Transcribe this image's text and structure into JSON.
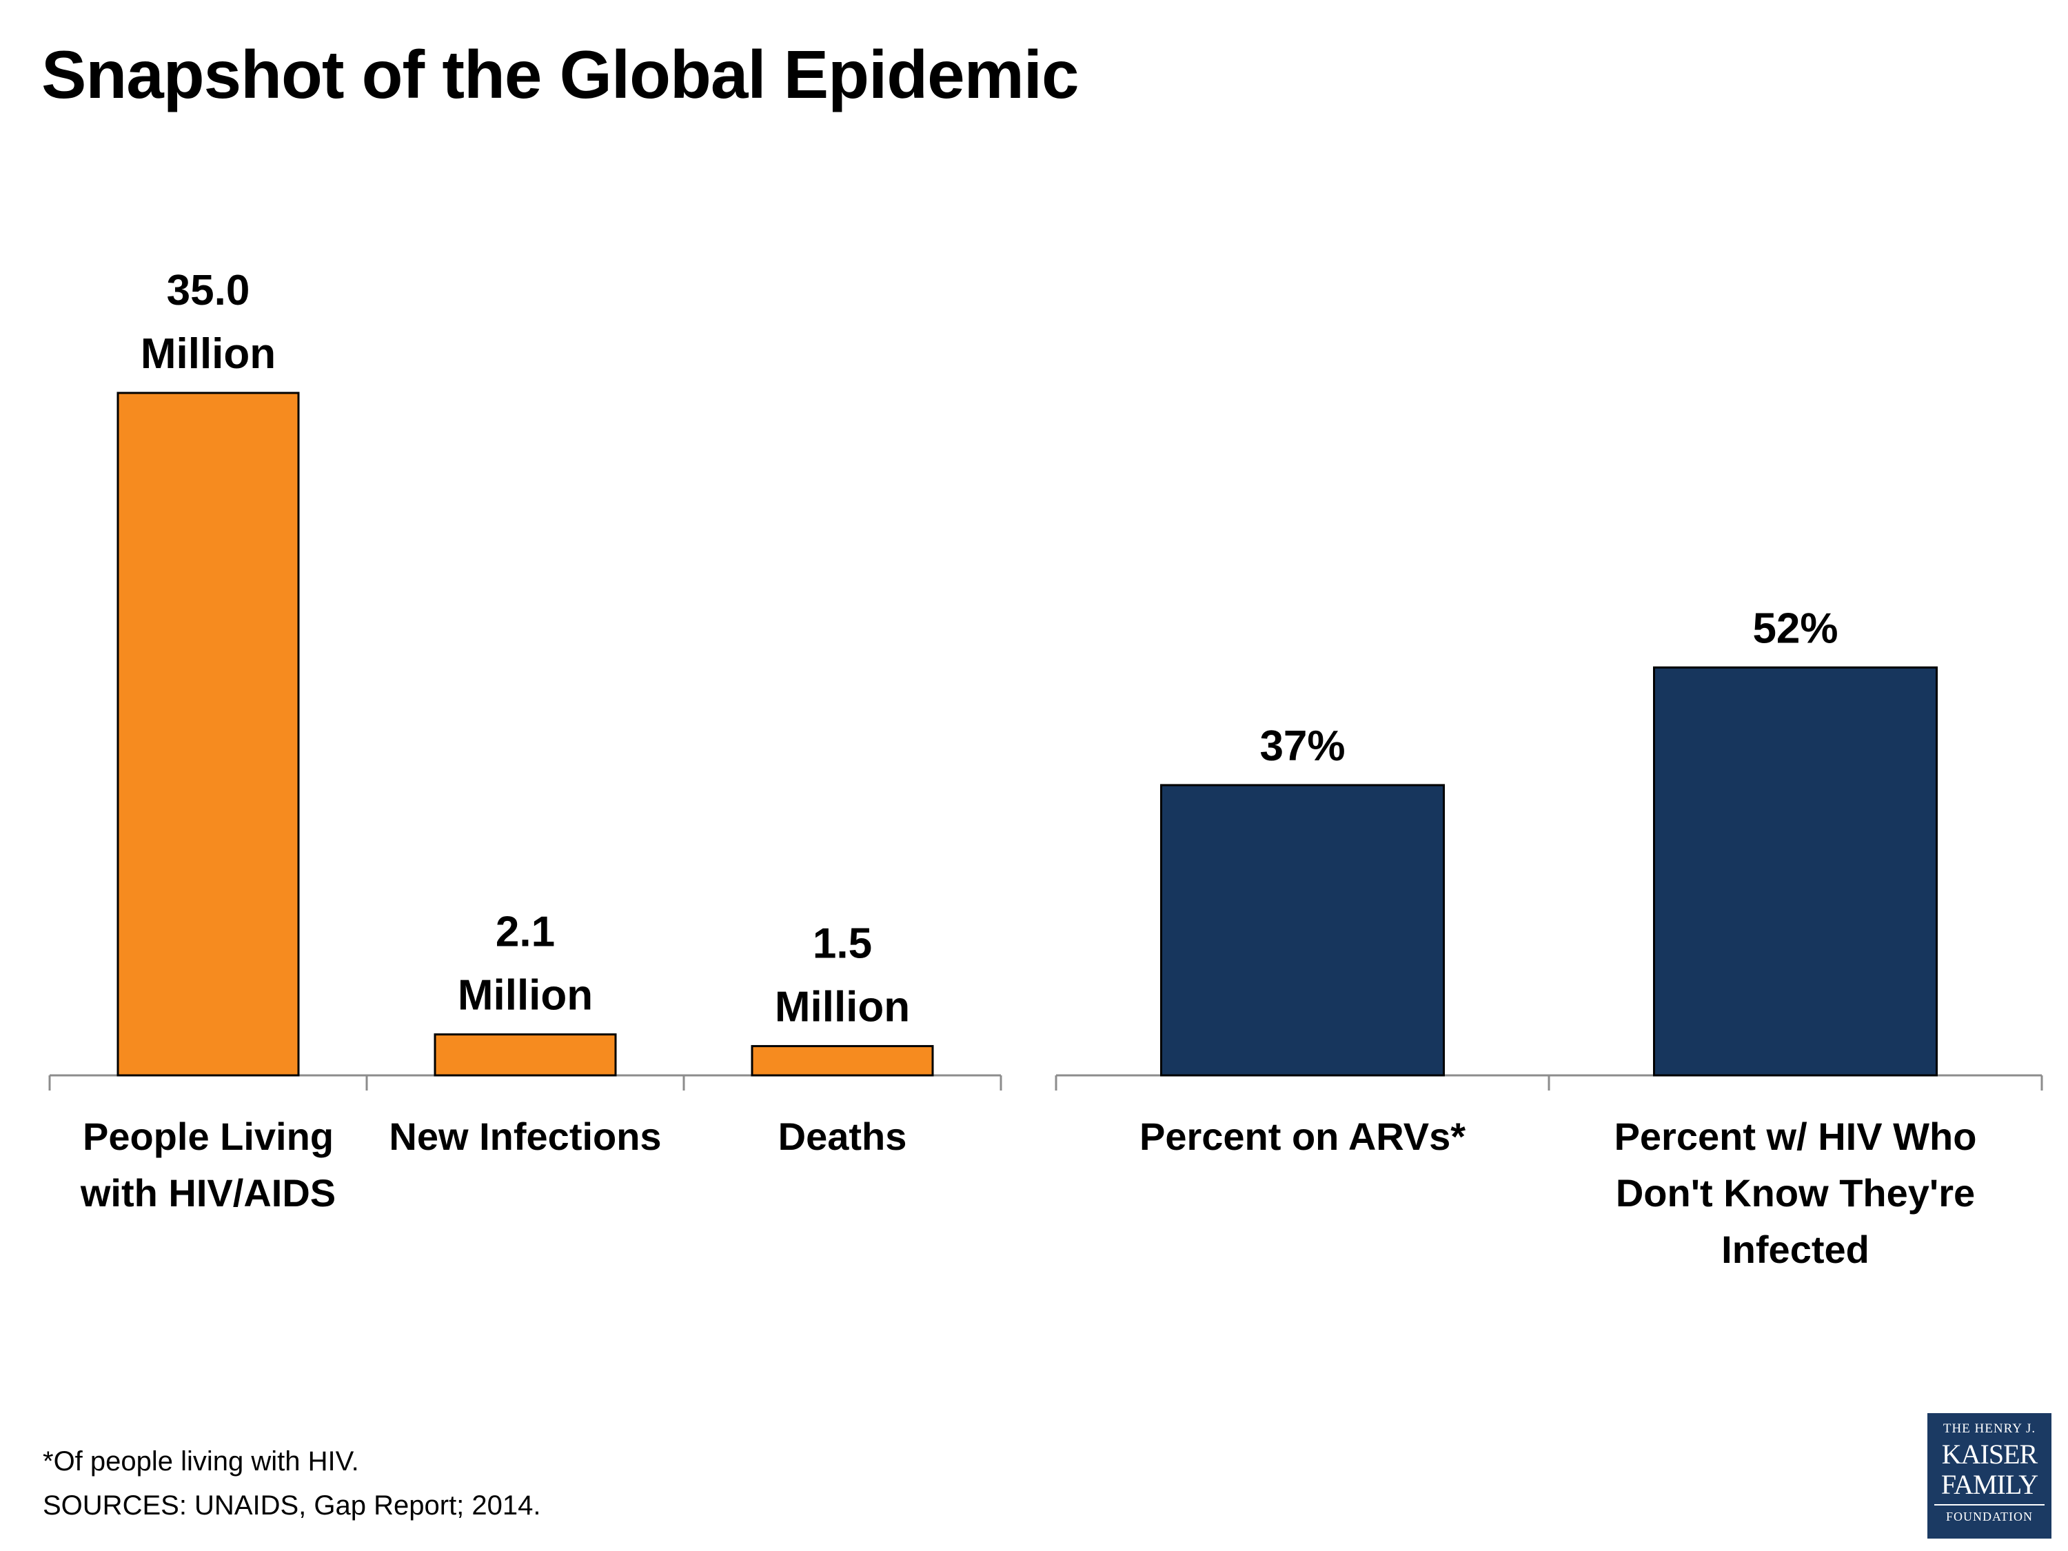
{
  "title": "Snapshot of the Global Epidemic",
  "chart_data": [
    {
      "type": "bar",
      "categories": [
        "People Living with HIV/AIDS",
        "New Infections",
        "Deaths"
      ],
      "category_lines": [
        [
          "People Living",
          "with HIV/AIDS"
        ],
        [
          "New Infections"
        ],
        [
          "Deaths"
        ]
      ],
      "values": [
        35.0,
        2.1,
        1.5
      ],
      "unit": "Million",
      "data_labels": [
        [
          "35.0",
          "Million"
        ],
        [
          "2.1",
          "Million"
        ],
        [
          "1.5",
          "Million"
        ]
      ],
      "ylim": [
        0,
        35.0
      ],
      "color": "#f68b1f",
      "grid": false
    },
    {
      "type": "bar",
      "categories": [
        "Percent on ARVs*",
        "Percent w/ HIV Who Don't Know They're Infected"
      ],
      "category_lines": [
        [
          "Percent on ARVs*"
        ],
        [
          "Percent w/ HIV Who",
          "Don't Know They're",
          "Infected"
        ]
      ],
      "values": [
        37,
        52
      ],
      "unit": "%",
      "data_labels": [
        [
          "37%"
        ],
        [
          "52%"
        ]
      ],
      "ylim": [
        0,
        87
      ],
      "color": "#17365d",
      "grid": false
    }
  ],
  "footnotes": [
    "*Of people living with HIV.",
    "SOURCES:  UNAIDS, Gap Report; 2014."
  ],
  "logo": {
    "line1": "THE HENRY J.",
    "line2": "KAISER",
    "line3": "FAMILY",
    "line4": "FOUNDATION"
  }
}
